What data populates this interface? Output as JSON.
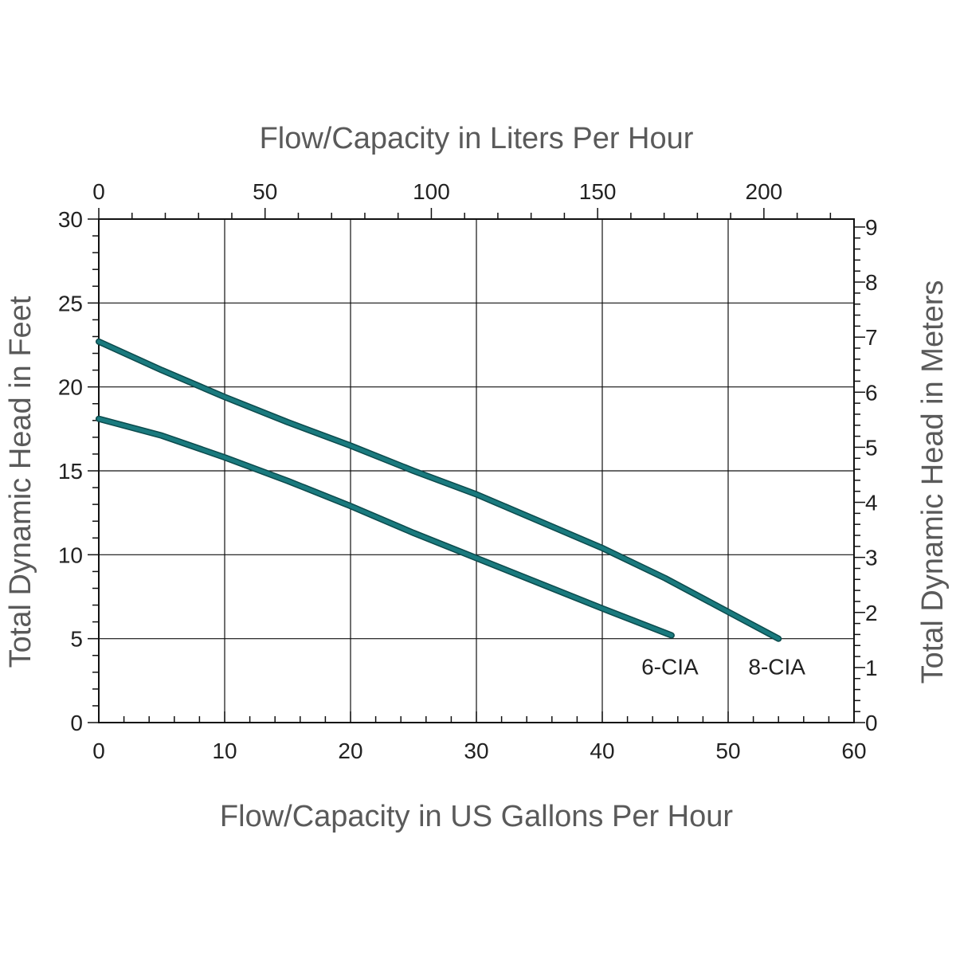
{
  "chart_data": {
    "type": "line",
    "title": "",
    "xlabel": "Flow/Capacity in US Gallons Per Hour",
    "x2label": "Flow/Capacity in Liters Per Hour",
    "ylabel": "Total Dynamic Head in Feet",
    "y2label": "Total Dynamic Head in Meters",
    "xlim": [
      0,
      60
    ],
    "ylim": [
      0,
      30
    ],
    "x2lim": [
      0,
      227.1
    ],
    "y2lim": [
      0,
      9.144
    ],
    "x_ticks": [
      "0",
      "10",
      "20",
      "30",
      "40",
      "50",
      "60"
    ],
    "y_ticks": [
      "0",
      "5",
      "10",
      "15",
      "20",
      "25",
      "30"
    ],
    "x2_ticks": [
      "0",
      "50",
      "100",
      "150",
      "200"
    ],
    "y2_ticks": [
      "0",
      "1",
      "2",
      "3",
      "4",
      "5",
      "6",
      "7",
      "8",
      "9"
    ],
    "grid": true,
    "line_color": "#1a7a7e",
    "series": [
      {
        "name": "6-CIA",
        "x": [
          0,
          5,
          10,
          15,
          20,
          25,
          30,
          35,
          40,
          45.5
        ],
        "y": [
          18.1,
          17.1,
          15.8,
          14.4,
          12.9,
          11.3,
          9.8,
          8.3,
          6.8,
          5.2
        ]
      },
      {
        "name": "8-CIA",
        "x": [
          0,
          5,
          10,
          15,
          20,
          25,
          30,
          35,
          40,
          45,
          50,
          54
        ],
        "y": [
          22.7,
          21.0,
          19.4,
          17.9,
          16.5,
          15.0,
          13.6,
          12.0,
          10.4,
          8.6,
          6.6,
          5.0
        ]
      }
    ]
  }
}
